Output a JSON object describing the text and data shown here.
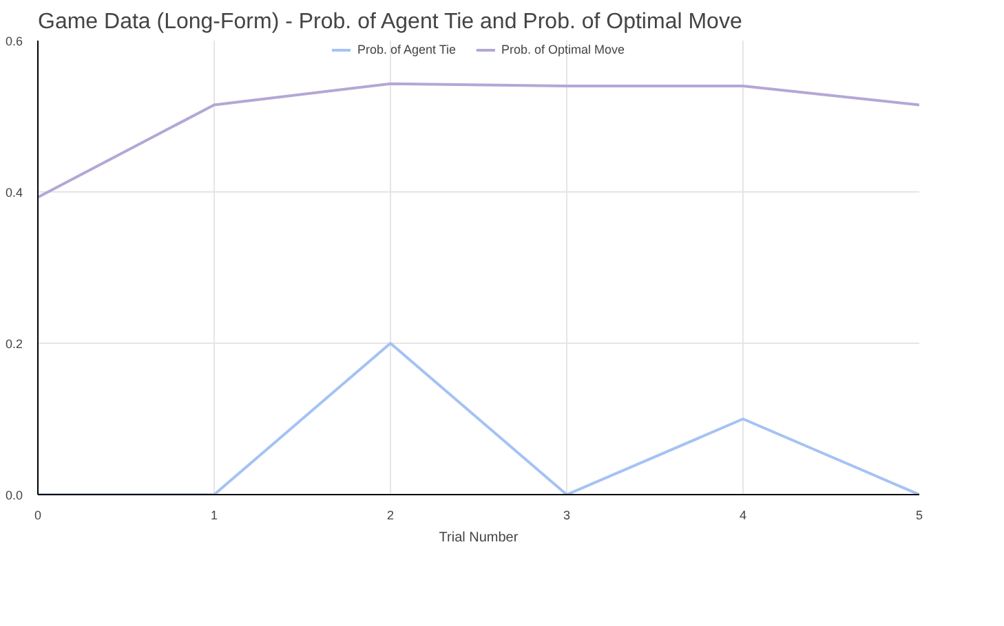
{
  "chart_data": {
    "type": "line",
    "title": "Game Data (Long-Form) - Prob. of Agent Tie and Prob. of Optimal Move",
    "xlabel": "Trial Number",
    "x": [
      0,
      1,
      2,
      3,
      4,
      5
    ],
    "series": [
      {
        "name": "Prob. of Agent Tie",
        "color": "#a4c2f4",
        "values": [
          0,
          0,
          0.2,
          0,
          0.1,
          0
        ]
      },
      {
        "name": "Prob. of Optimal Move",
        "color": "#b4a7d6",
        "values": [
          0.393,
          0.515,
          0.543,
          0.54,
          0.54,
          0.515
        ]
      }
    ],
    "xlim": [
      0,
      5
    ],
    "xticks": [
      0,
      1,
      2,
      3,
      4,
      5
    ],
    "ylim": [
      0,
      0.6
    ],
    "yticks": [
      {
        "value": 0,
        "label": "0.0"
      },
      0.2,
      0.4,
      0.6
    ],
    "grid": true,
    "legend": "top"
  }
}
